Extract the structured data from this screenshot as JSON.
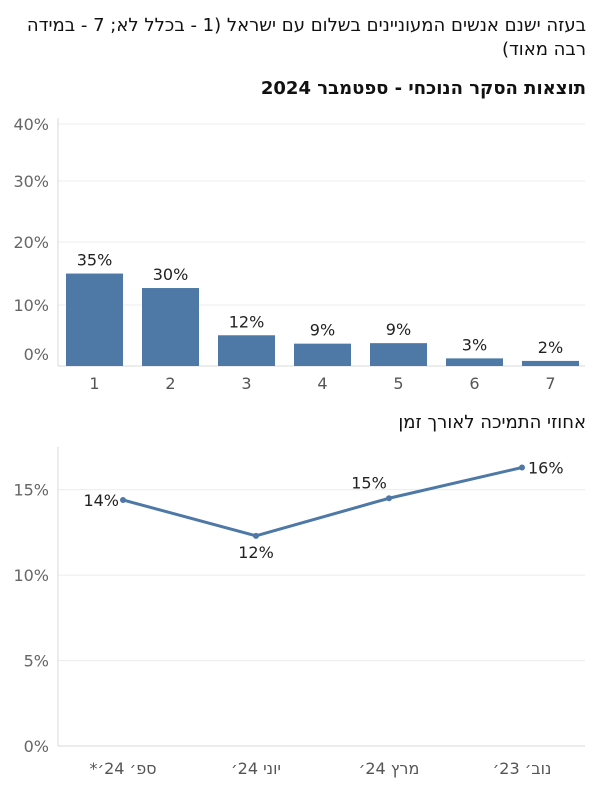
{
  "chart_title": "בעזה ישנם אנשים המעוניינים בשלום עם ישראל (1 - בכלל לא; 7 - במידה רבה מאוד)",
  "chart_subtitle": "תוצאות הסקר הנוכחי - ספטמבר 2024",
  "line_title": "אחוזי התמיכה לאורך זמן",
  "colors": {
    "bar": "#4e79a7",
    "line": "#4e79a7",
    "grid": "#ececec",
    "axis": "#d9d9d9"
  },
  "chart_data": [
    {
      "type": "bar",
      "title": "תוצאות הסקר הנוכחי - ספטמבר 2024",
      "categories": [
        "1",
        "2",
        "3",
        "4",
        "5",
        "6",
        "7"
      ],
      "values": [
        35,
        30,
        12,
        9,
        9,
        3,
        2
      ],
      "labels": [
        "35%",
        "30%",
        "12%",
        "9%",
        "9%",
        "3%",
        "2%"
      ],
      "value_fill_fraction": [
        0.364,
        0.307,
        0.121,
        0.088,
        0.09,
        0.03,
        0.02
      ],
      "yticks": [
        "0%",
        "10%",
        "20%",
        "30%",
        "40%"
      ],
      "ylim": [
        0,
        40
      ],
      "grid": true
    },
    {
      "type": "line",
      "title": "אחוזי התמיכה לאורך זמן",
      "categories": [
        "ספ׳ 24׳*",
        "יוני 24׳",
        "מרץ 24׳",
        "נוב׳ 23׳"
      ],
      "values": [
        14.4,
        12.3,
        14.5,
        16.3
      ],
      "labels": [
        "14%",
        "12%",
        "15%",
        "16%"
      ],
      "yticks": [
        "0%",
        "5%",
        "10%",
        "15%"
      ],
      "ylim": [
        0,
        17.5
      ],
      "grid": true
    }
  ]
}
